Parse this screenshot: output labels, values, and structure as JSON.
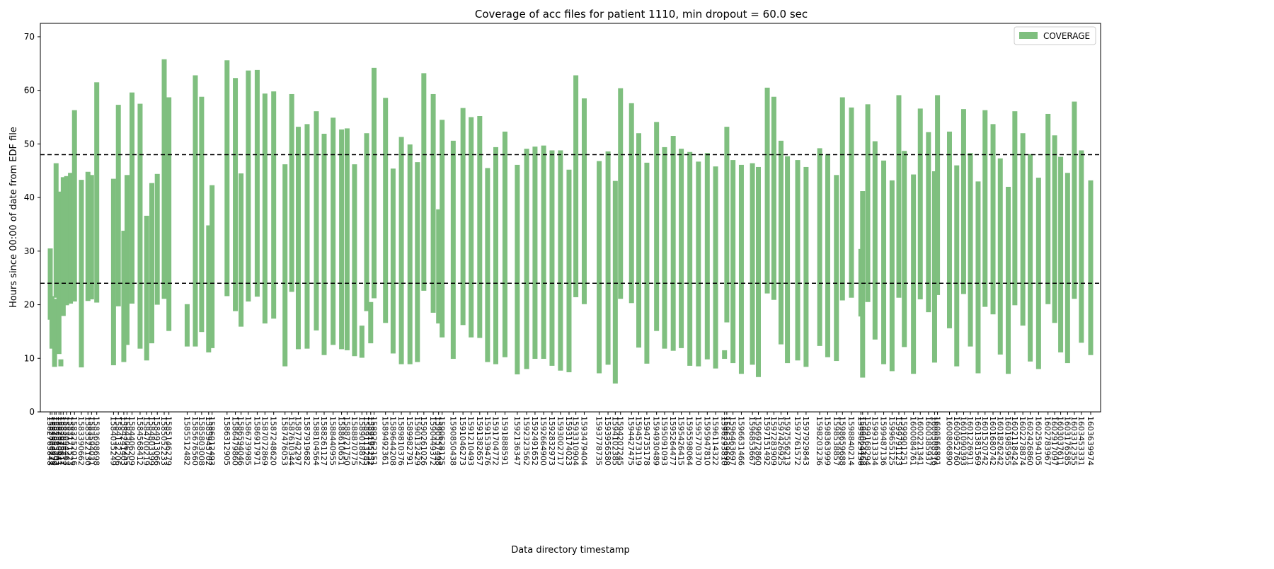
{
  "chart_data": {
    "type": "bar",
    "title": "Coverage of acc files for patient 1110, min dropout = 60.0 sec",
    "xlabel": "Data directory timestamp",
    "ylabel": "Hours since 00:00 of date from EDF file",
    "ylim": [
      0,
      72.5
    ],
    "yticks": [
      0,
      10,
      20,
      30,
      40,
      50,
      60,
      70
    ],
    "hlines": [
      24,
      48
    ],
    "grid": false,
    "legend": {
      "position": "top-right",
      "label": "COVERAGE"
    },
    "series": [
      {
        "name": "COVERAGE",
        "color": "#7fbf7f"
      }
    ],
    "bars": [
      {
        "x": "1582765848",
        "bottom": 17.2,
        "top": 30.5
      },
      {
        "x": "1582800271",
        "bottom": 11.8,
        "top": 21.6
      },
      {
        "x": "1582853090",
        "bottom": 8.4,
        "top": 21.1
      },
      {
        "x": "1582883202",
        "bottom": 21.3,
        "top": 46.4
      },
      {
        "x": "1582940441",
        "bottom": 10.8,
        "top": 41.1
      },
      {
        "x": "1582978611",
        "bottom": 8.5,
        "top": 9.8
      },
      {
        "x": "1583026412",
        "bottom": 17.9,
        "top": 43.8
      },
      {
        "x": "1583094463",
        "bottom": 19.9,
        "top": 44.0
      },
      {
        "x": "1583171523",
        "bottom": 20.2,
        "top": 44.6
      },
      {
        "x": "1583252016",
        "bottom": 20.6,
        "top": 56.3
      },
      {
        "x": "1583390662",
        "bottom": 8.3,
        "top": 43.3
      },
      {
        "x": "1583522130",
        "bottom": 20.7,
        "top": 44.8
      },
      {
        "x": "1583594031",
        "bottom": 21.0,
        "top": 44.2
      },
      {
        "x": "1583698698",
        "bottom": 20.4,
        "top": 61.5
      },
      {
        "x": "1584035249",
        "bottom": 8.7,
        "top": 43.5
      },
      {
        "x": "1584132206",
        "bottom": 19.7,
        "top": 57.3
      },
      {
        "x": "1584241403",
        "bottom": 9.3,
        "top": 33.8
      },
      {
        "x": "1584306255",
        "bottom": 12.5,
        "top": 44.2
      },
      {
        "x": "1584406209",
        "bottom": 20.2,
        "top": 59.6
      },
      {
        "x": "1584568412",
        "bottom": 11.8,
        "top": 57.5
      },
      {
        "x": "1584700219",
        "bottom": 9.6,
        "top": 36.6
      },
      {
        "x": "1584803399",
        "bottom": 12.8,
        "top": 42.7
      },
      {
        "x": "1584913066",
        "bottom": 20.0,
        "top": 44.4
      },
      {
        "x": "1585052233",
        "bottom": 21.1,
        "top": 65.8
      },
      {
        "x": "1585146279",
        "bottom": 15.1,
        "top": 58.7
      },
      {
        "x": "1585512482",
        "bottom": 12.2,
        "top": 20.1
      },
      {
        "x": "1585676560",
        "bottom": 12.2,
        "top": 62.8
      },
      {
        "x": "1585803008",
        "bottom": 14.9,
        "top": 58.8
      },
      {
        "x": "1585943702",
        "bottom": 11.1,
        "top": 34.8
      },
      {
        "x": "1586012493",
        "bottom": 11.9,
        "top": 42.3
      },
      {
        "x": "1586312905",
        "bottom": 21.6,
        "top": 65.6
      },
      {
        "x": "1586479860",
        "bottom": 18.8,
        "top": 62.3
      },
      {
        "x": "1586594046",
        "bottom": 15.9,
        "top": 44.5
      },
      {
        "x": "1586739985",
        "bottom": 20.6,
        "top": 63.7
      },
      {
        "x": "1586917971",
        "bottom": 21.5,
        "top": 63.8
      },
      {
        "x": "1587072869",
        "bottom": 16.5,
        "top": 59.4
      },
      {
        "x": "1587248620",
        "bottom": 17.4,
        "top": 59.8
      },
      {
        "x": "1587476053",
        "bottom": 8.5,
        "top": 46.2
      },
      {
        "x": "1587610344",
        "bottom": 22.4,
        "top": 59.3
      },
      {
        "x": "1587742297",
        "bottom": 11.7,
        "top": 53.2
      },
      {
        "x": "1587919682",
        "bottom": 11.8,
        "top": 53.7
      },
      {
        "x": "1588104564",
        "bottom": 15.2,
        "top": 56.1
      },
      {
        "x": "1588261127",
        "bottom": 10.6,
        "top": 51.9
      },
      {
        "x": "1588440955",
        "bottom": 12.5,
        "top": 54.9
      },
      {
        "x": "1588610651",
        "bottom": 11.7,
        "top": 52.7
      },
      {
        "x": "1588721750",
        "bottom": 11.5,
        "top": 52.9
      },
      {
        "x": "1588870775",
        "bottom": 10.4,
        "top": 46.2
      },
      {
        "x": "1589018872",
        "bottom": 10.1,
        "top": 16.1
      },
      {
        "x": "1589113285",
        "bottom": 18.8,
        "top": 52.0
      },
      {
        "x": "1589195252",
        "bottom": 12.8,
        "top": 20.5
      },
      {
        "x": "1589262151",
        "bottom": 21.2,
        "top": 64.2
      },
      {
        "x": "1589492361",
        "bottom": 16.6,
        "top": 58.6
      },
      {
        "x": "1589644208",
        "bottom": 10.9,
        "top": 45.4
      },
      {
        "x": "1589810376",
        "bottom": 8.9,
        "top": 51.3
      },
      {
        "x": "1589982791",
        "bottom": 8.9,
        "top": 49.9
      },
      {
        "x": "1590132429",
        "bottom": 9.3,
        "top": 46.6
      },
      {
        "x": "1590261026",
        "bottom": 22.6,
        "top": 63.2
      },
      {
        "x": "1590449372",
        "bottom": 18.5,
        "top": 59.3
      },
      {
        "x": "1590557498",
        "bottom": 16.5,
        "top": 37.8
      },
      {
        "x": "1590628125",
        "bottom": 13.9,
        "top": 54.5
      },
      {
        "x": "1590850438",
        "bottom": 9.9,
        "top": 50.6
      },
      {
        "x": "1591046273",
        "bottom": 16.2,
        "top": 56.7
      },
      {
        "x": "1591210493",
        "bottom": 13.9,
        "top": 55.0
      },
      {
        "x": "1591382657",
        "bottom": 13.8,
        "top": 55.2
      },
      {
        "x": "1591539476",
        "bottom": 9.3,
        "top": 45.5
      },
      {
        "x": "1591704772",
        "bottom": 8.9,
        "top": 49.4
      },
      {
        "x": "1591888591",
        "bottom": 10.2,
        "top": 52.3
      },
      {
        "x": "1592136347",
        "bottom": 7.0,
        "top": 46.1
      },
      {
        "x": "1592323562",
        "bottom": 8.0,
        "top": 49.1
      },
      {
        "x": "1592491652",
        "bottom": 9.9,
        "top": 49.5
      },
      {
        "x": "1592664900",
        "bottom": 9.9,
        "top": 49.7
      },
      {
        "x": "1592832973",
        "bottom": 8.6,
        "top": 48.8
      },
      {
        "x": "1593002717",
        "bottom": 7.7,
        "top": 48.8
      },
      {
        "x": "1593174023",
        "bottom": 7.4,
        "top": 45.2
      },
      {
        "x": "1593310904",
        "bottom": 21.4,
        "top": 62.8
      },
      {
        "x": "1593479404",
        "bottom": 20.1,
        "top": 58.5
      },
      {
        "x": "1593778735",
        "bottom": 7.2,
        "top": 46.8
      },
      {
        "x": "1593956580",
        "bottom": 8.8,
        "top": 48.6
      },
      {
        "x": "1594102385",
        "bottom": 5.3,
        "top": 43.1
      },
      {
        "x": "1594207245",
        "bottom": 21.1,
        "top": 60.4
      },
      {
        "x": "1594427475",
        "bottom": 20.3,
        "top": 57.6
      },
      {
        "x": "1594573119",
        "bottom": 12.0,
        "top": 52.0
      },
      {
        "x": "1594735178",
        "bottom": 9.0,
        "top": 46.5
      },
      {
        "x": "1594930489",
        "bottom": 15.1,
        "top": 54.1
      },
      {
        "x": "1595091093",
        "bottom": 11.8,
        "top": 49.4
      },
      {
        "x": "1595264477",
        "bottom": 11.4,
        "top": 51.5
      },
      {
        "x": "1595426415",
        "bottom": 11.9,
        "top": 49.1
      },
      {
        "x": "1595598064",
        "bottom": 8.6,
        "top": 48.5
      },
      {
        "x": "1595770370",
        "bottom": 8.5,
        "top": 46.7
      },
      {
        "x": "1595947810",
        "bottom": 9.8,
        "top": 48.3
      },
      {
        "x": "1596114322",
        "bottom": 8.1,
        "top": 45.8
      },
      {
        "x": "1596293810",
        "bottom": 9.9,
        "top": 11.5
      },
      {
        "x": "1596339698",
        "bottom": 16.7,
        "top": 53.2
      },
      {
        "x": "1596463697",
        "bottom": 9.1,
        "top": 47.0
      },
      {
        "x": "1596631466",
        "bottom": 7.1,
        "top": 46.1
      },
      {
        "x": "1596853667",
        "bottom": 8.8,
        "top": 46.4
      },
      {
        "x": "1596972860",
        "bottom": 6.5,
        "top": 45.7
      },
      {
        "x": "1597151492",
        "bottom": 22.1,
        "top": 60.5
      },
      {
        "x": "1597283909",
        "bottom": 20.9,
        "top": 58.8
      },
      {
        "x": "1597426925",
        "bottom": 12.6,
        "top": 50.6
      },
      {
        "x": "1597556213",
        "bottom": 9.1,
        "top": 47.7
      },
      {
        "x": "1597761572",
        "bottom": 9.6,
        "top": 47.0
      },
      {
        "x": "1597929843",
        "bottom": 8.4,
        "top": 45.7
      },
      {
        "x": "1598203236",
        "bottom": 12.3,
        "top": 49.2
      },
      {
        "x": "1598363999",
        "bottom": 10.2,
        "top": 48.1
      },
      {
        "x": "1598538857",
        "bottom": 9.5,
        "top": 44.2
      },
      {
        "x": "1598659688",
        "bottom": 20.8,
        "top": 58.7
      },
      {
        "x": "1598840214",
        "bottom": 21.3,
        "top": 56.8
      },
      {
        "x": "1599029136",
        "bottom": 17.8,
        "top": 30.4
      },
      {
        "x": "1599064468",
        "bottom": 6.4,
        "top": 41.2
      },
      {
        "x": "1599168294",
        "bottom": 20.5,
        "top": 57.4
      },
      {
        "x": "1599313334",
        "bottom": 13.5,
        "top": 50.5
      },
      {
        "x": "1599487136",
        "bottom": 8.9,
        "top": 46.9
      },
      {
        "x": "1599655125",
        "bottom": 7.6,
        "top": 43.2
      },
      {
        "x": "1599791123",
        "bottom": 21.3,
        "top": 59.1
      },
      {
        "x": "1599901251",
        "bottom": 12.1,
        "top": 48.7
      },
      {
        "x": "1600084761",
        "bottom": 7.1,
        "top": 44.3
      },
      {
        "x": "1600221341",
        "bottom": 21.0,
        "top": 56.6
      },
      {
        "x": "1600385937",
        "bottom": 18.6,
        "top": 52.2
      },
      {
        "x": "1600508316",
        "bottom": 9.2,
        "top": 44.9
      },
      {
        "x": "1600566891",
        "bottom": 21.8,
        "top": 59.1
      },
      {
        "x": "1600806890",
        "bottom": 15.6,
        "top": 52.3
      },
      {
        "x": "1600952760",
        "bottom": 8.5,
        "top": 46.0
      },
      {
        "x": "1601090393",
        "bottom": 22.0,
        "top": 56.5
      },
      {
        "x": "1601226911",
        "bottom": 12.2,
        "top": 48.3
      },
      {
        "x": "1601381569",
        "bottom": 7.2,
        "top": 43.0
      },
      {
        "x": "1601520742",
        "bottom": 19.6,
        "top": 56.3
      },
      {
        "x": "1601680742",
        "bottom": 18.2,
        "top": 53.7
      },
      {
        "x": "1601826242",
        "bottom": 10.7,
        "top": 47.3
      },
      {
        "x": "1601985955",
        "bottom": 7.1,
        "top": 42.0
      },
      {
        "x": "1602118424",
        "bottom": 19.9,
        "top": 56.1
      },
      {
        "x": "1602278874",
        "bottom": 16.1,
        "top": 52.0
      },
      {
        "x": "1602426860",
        "bottom": 9.4,
        "top": 48.1
      },
      {
        "x": "1602594105",
        "bottom": 8.0,
        "top": 43.7
      },
      {
        "x": "1602783967",
        "bottom": 20.1,
        "top": 55.6
      },
      {
        "x": "1602917097",
        "bottom": 16.6,
        "top": 51.6
      },
      {
        "x": "1603037611",
        "bottom": 11.1,
        "top": 47.6
      },
      {
        "x": "1603176585",
        "bottom": 9.1,
        "top": 44.6
      },
      {
        "x": "1603312355",
        "bottom": 21.1,
        "top": 57.9
      },
      {
        "x": "1603453331",
        "bottom": 12.9,
        "top": 48.8
      },
      {
        "x": "1603639974",
        "bottom": 10.6,
        "top": 43.2
      }
    ]
  }
}
